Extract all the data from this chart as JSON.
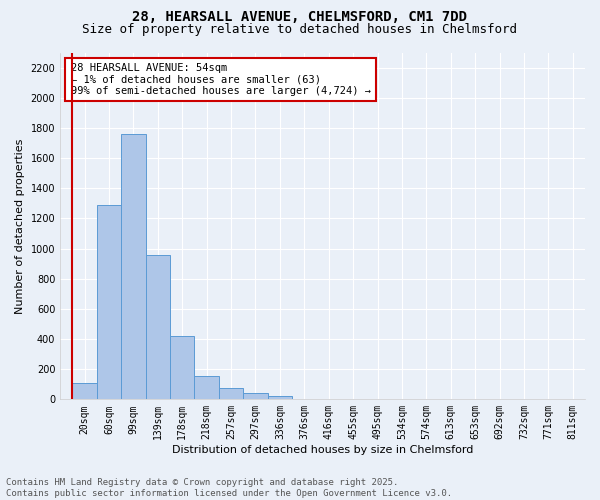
{
  "title_line1": "28, HEARSALL AVENUE, CHELMSFORD, CM1 7DD",
  "title_line2": "Size of property relative to detached houses in Chelmsford",
  "xlabel": "Distribution of detached houses by size in Chelmsford",
  "ylabel": "Number of detached properties",
  "bins": [
    "20sqm",
    "60sqm",
    "99sqm",
    "139sqm",
    "178sqm",
    "218sqm",
    "257sqm",
    "297sqm",
    "336sqm",
    "376sqm",
    "416sqm",
    "455sqm",
    "495sqm",
    "534sqm",
    "574sqm",
    "613sqm",
    "653sqm",
    "692sqm",
    "732sqm",
    "771sqm",
    "811sqm"
  ],
  "values": [
    110,
    1290,
    1760,
    960,
    420,
    155,
    75,
    45,
    25,
    5,
    3,
    1,
    1,
    0,
    0,
    0,
    0,
    0,
    0,
    0,
    0
  ],
  "bar_color": "#aec6e8",
  "bar_edge_color": "#5b9bd5",
  "highlight_color": "#cc0000",
  "annotation_text": "28 HEARSALL AVENUE: 54sqm\n← 1% of detached houses are smaller (63)\n99% of semi-detached houses are larger (4,724) →",
  "annotation_box_color": "#ffffff",
  "annotation_box_edge": "#cc0000",
  "ylim": [
    0,
    2300
  ],
  "yticks": [
    0,
    200,
    400,
    600,
    800,
    1000,
    1200,
    1400,
    1600,
    1800,
    2000,
    2200
  ],
  "background_color": "#eaf0f8",
  "footer_line1": "Contains HM Land Registry data © Crown copyright and database right 2025.",
  "footer_line2": "Contains public sector information licensed under the Open Government Licence v3.0.",
  "title_fontsize": 10,
  "subtitle_fontsize": 9,
  "axis_label_fontsize": 8,
  "tick_fontsize": 7,
  "annotation_fontsize": 7.5,
  "footer_fontsize": 6.5
}
